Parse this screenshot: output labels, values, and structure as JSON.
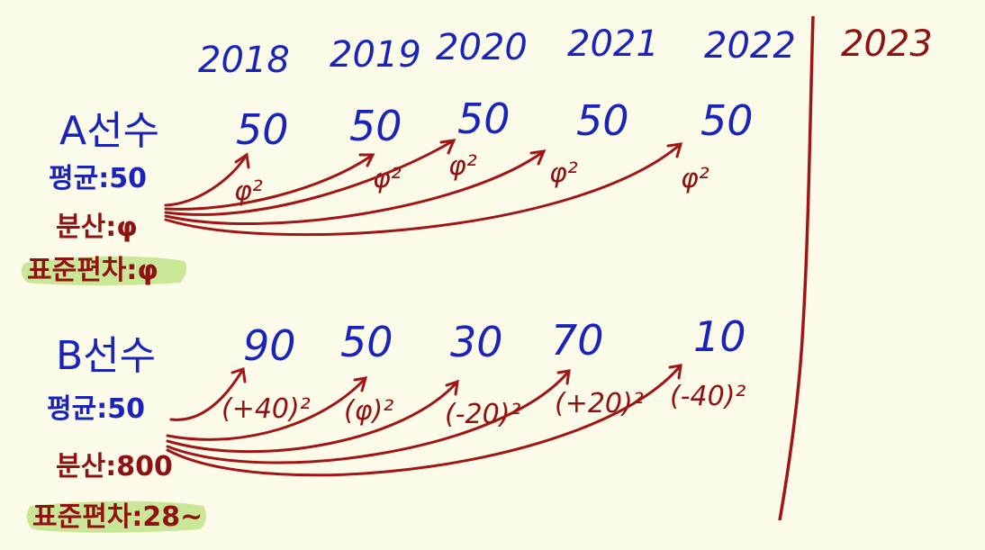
{
  "colors": {
    "blue_ink": "#1a24b8",
    "red_ink": "#8e1212",
    "highlight": "#b8e07a",
    "paper": "#fcfbe9"
  },
  "years": [
    "2018",
    "2019",
    "2020",
    "2021",
    "2022"
  ],
  "future_year": "2023",
  "players": [
    {
      "name": "A선수",
      "values": [
        "50",
        "50",
        "50",
        "50",
        "50"
      ],
      "deviations": [
        "φ²",
        "φ²",
        "φ²",
        "φ²",
        "φ²"
      ],
      "mean": "평균:50",
      "variance": "분산:φ",
      "std_dev": "표준편차:φ"
    },
    {
      "name": "B선수",
      "values": [
        "90",
        "50",
        "30",
        "70",
        "10"
      ],
      "deviations": [
        "(+40)²",
        "(φ)²",
        "(-20)²",
        "(+20)²",
        "(-40)²"
      ],
      "mean": "평균:50",
      "variance": "분산:800",
      "std_dev": "표준편차:28~"
    }
  ]
}
